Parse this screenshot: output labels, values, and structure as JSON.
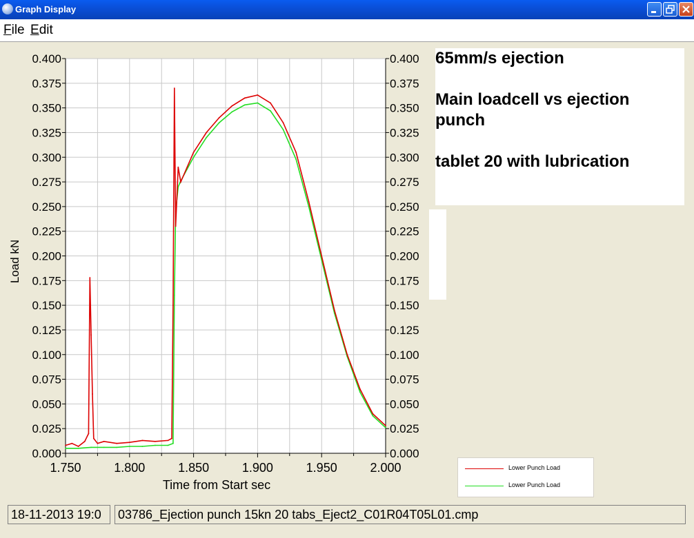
{
  "window": {
    "title": "Graph Display",
    "icon": "app-icon",
    "buttons": [
      "minimize-icon",
      "restore-icon",
      "close-icon"
    ]
  },
  "menu": {
    "file_key": "F",
    "file_rest": "ile",
    "edit_key": "E",
    "edit_rest": "dit"
  },
  "notes": {
    "line1": "65mm/s ejection",
    "line2": "Main loadcell vs ejection",
    "line3": "punch",
    "line4": "tablet 20 with lubrication"
  },
  "legend": {
    "entries": [
      {
        "label": "Lower Punch Load",
        "color": "#dd0000"
      },
      {
        "label": "Lower Punch Load",
        "color": "#22dd22"
      }
    ]
  },
  "status": {
    "datetime": "18-11-2013 19:0",
    "filename": "03786_Ejection punch 15kn 20 tabs_Eject2_C01R04T05L01.cmp"
  },
  "chart_data": {
    "type": "line",
    "xlabel": "Time from Start sec",
    "ylabel": "Load kN",
    "xlim": [
      1.75,
      2.0
    ],
    "ylim": [
      0.0,
      0.4
    ],
    "x_ticks": [
      "1.750",
      "1.800",
      "1.850",
      "1.900",
      "1.950",
      "2.000"
    ],
    "y_ticks": [
      "0.000",
      "0.025",
      "0.050",
      "0.075",
      "0.100",
      "0.125",
      "0.150",
      "0.175",
      "0.200",
      "0.225",
      "0.250",
      "0.275",
      "0.300",
      "0.325",
      "0.350",
      "0.375",
      "0.400"
    ],
    "grid": true,
    "right_axis": true,
    "series": [
      {
        "name": "Lower Punch Load",
        "color": "#dd0000",
        "x": [
          1.75,
          1.755,
          1.76,
          1.765,
          1.768,
          1.769,
          1.77,
          1.771,
          1.772,
          1.775,
          1.78,
          1.79,
          1.8,
          1.81,
          1.82,
          1.83,
          1.833,
          1.834,
          1.835,
          1.836,
          1.838,
          1.84,
          1.845,
          1.85,
          1.86,
          1.87,
          1.88,
          1.89,
          1.9,
          1.91,
          1.92,
          1.93,
          1.94,
          1.95,
          1.96,
          1.97,
          1.98,
          1.99,
          2.0
        ],
        "y": [
          0.008,
          0.01,
          0.007,
          0.012,
          0.02,
          0.178,
          0.12,
          0.06,
          0.015,
          0.01,
          0.012,
          0.01,
          0.011,
          0.013,
          0.012,
          0.013,
          0.015,
          0.15,
          0.37,
          0.23,
          0.29,
          0.275,
          0.29,
          0.305,
          0.325,
          0.34,
          0.352,
          0.36,
          0.363,
          0.355,
          0.335,
          0.305,
          0.255,
          0.2,
          0.145,
          0.1,
          0.065,
          0.04,
          0.028
        ]
      },
      {
        "name": "Lower Punch Load",
        "color": "#22dd22",
        "x": [
          1.75,
          1.76,
          1.77,
          1.78,
          1.79,
          1.8,
          1.81,
          1.82,
          1.83,
          1.834,
          1.835,
          1.836,
          1.838,
          1.84,
          1.845,
          1.85,
          1.86,
          1.87,
          1.88,
          1.89,
          1.9,
          1.91,
          1.92,
          1.93,
          1.94,
          1.95,
          1.96,
          1.97,
          1.98,
          1.99,
          2.0
        ],
        "y": [
          0.005,
          0.005,
          0.006,
          0.006,
          0.006,
          0.007,
          0.007,
          0.008,
          0.008,
          0.01,
          0.16,
          0.245,
          0.27,
          0.276,
          0.288,
          0.3,
          0.32,
          0.335,
          0.346,
          0.353,
          0.355,
          0.347,
          0.328,
          0.298,
          0.25,
          0.196,
          0.142,
          0.098,
          0.062,
          0.038,
          0.026
        ]
      }
    ]
  }
}
